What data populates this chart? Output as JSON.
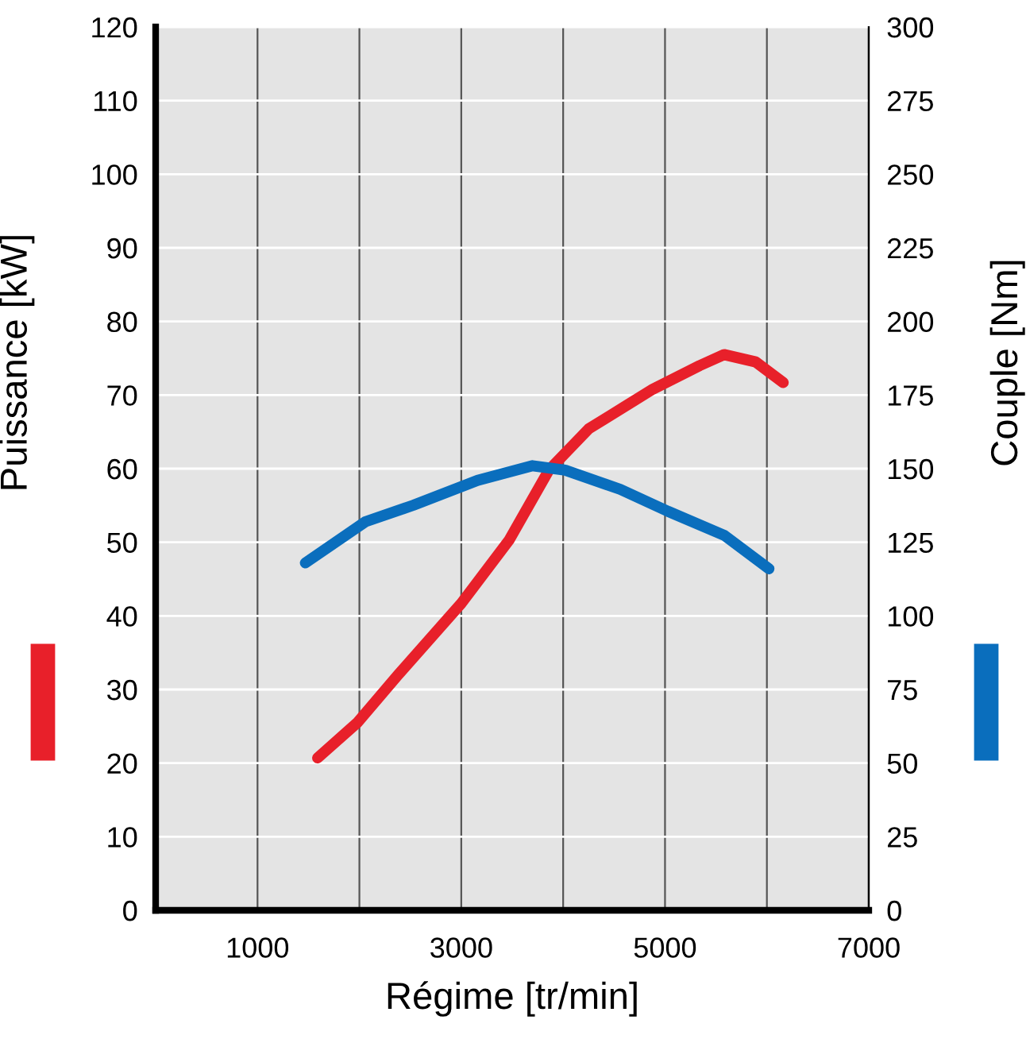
{
  "chart_data": {
    "type": "line",
    "xlabel": "Régime [tr/min]",
    "ylabel": "Puissance [kW]",
    "y2label": "Couple [Nm]",
    "xlim": [
      0,
      7000
    ],
    "xticks": [
      {
        "value": 1000,
        "label": "1000"
      },
      {
        "value": 2000,
        "label": null
      },
      {
        "value": 3000,
        "label": "3000"
      },
      {
        "value": 4000,
        "label": null
      },
      {
        "value": 5000,
        "label": "5000"
      },
      {
        "value": 6000,
        "label": null
      },
      {
        "value": 7000,
        "label": "7000"
      }
    ],
    "ylim": [
      0,
      120
    ],
    "yticks": [
      0,
      10,
      20,
      30,
      40,
      50,
      60,
      70,
      80,
      90,
      100,
      110,
      120
    ],
    "y2lim": [
      0,
      300
    ],
    "y2ticks": [
      0,
      25,
      50,
      75,
      100,
      125,
      150,
      175,
      200,
      225,
      250,
      275,
      300
    ],
    "grid": true,
    "marker": "none",
    "line_style": "solid",
    "series": [
      {
        "color": "#e8202a",
        "x": [
          1590,
          1980,
          2380,
          3000,
          3470,
          3860,
          4250,
          4880,
          5340,
          5580,
          5890,
          6160
        ],
        "values": [
          20.7,
          25.5,
          32,
          41.7,
          50.3,
          59.8,
          65.4,
          70.8,
          74,
          75.5,
          74.5,
          71.7
        ]
      },
      {
        "color": "#0a6ebd",
        "axis": "y2",
        "x": [
          1470,
          2060,
          2530,
          3160,
          3700,
          4020,
          4560,
          5030,
          5580,
          6020
        ],
        "values": [
          118,
          132,
          137.6,
          146,
          151,
          149.5,
          143,
          135.5,
          127.4,
          116
        ]
      }
    ]
  }
}
